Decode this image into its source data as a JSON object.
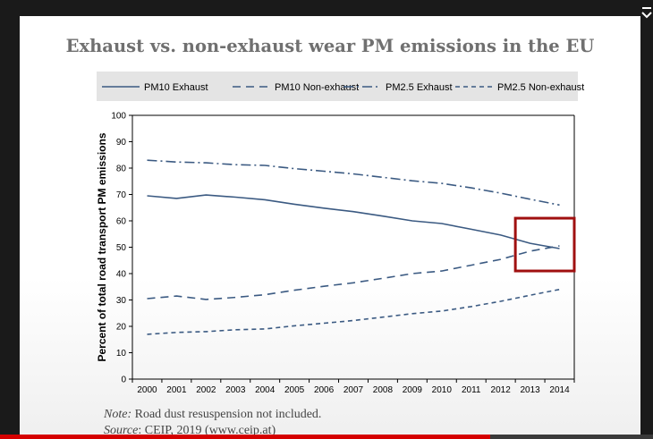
{
  "progress": {
    "fraction": 0.75,
    "color": "#d50000"
  },
  "note": {
    "note_label": "Note:",
    "note_text": " Road dust resuspension not included.",
    "source_label": "Source",
    "source_text": ": CEIP, 2019 (www.ceip.at)"
  },
  "chart_data": {
    "type": "line",
    "title": "Exhaust vs. non-exhaust wear PM emissions in the EU",
    "ylabel": "Percent of total road transport PM emissions",
    "xlabel": "",
    "ylim": [
      0,
      100
    ],
    "yticks": [
      0,
      10,
      20,
      30,
      40,
      50,
      60,
      70,
      80,
      90,
      100
    ],
    "x": [
      "2000",
      "2001",
      "2002",
      "2003",
      "2004",
      "2005",
      "2006",
      "2007",
      "2008",
      "2009",
      "2010",
      "2011",
      "2012",
      "2013",
      "2014"
    ],
    "legend_position": "top",
    "grid": false,
    "line_color": "#3b5a82",
    "highlight_box": {
      "x_from": "2013",
      "x_to": "2014",
      "y_from": 41,
      "y_to": 61,
      "color": "#a01010"
    },
    "series": [
      {
        "name": "PM10 Exhaust",
        "style": "solid",
        "values": [
          69.5,
          68.5,
          69.8,
          69.0,
          68.0,
          66.3,
          64.8,
          63.5,
          61.8,
          60.0,
          59.0,
          56.8,
          54.6,
          51.5,
          49.5
        ]
      },
      {
        "name": "PM10 Non-exhaust",
        "style": "dashed",
        "values": [
          30.5,
          31.5,
          30.2,
          31.0,
          32.0,
          33.7,
          35.2,
          36.5,
          38.2,
          40.0,
          41.0,
          43.2,
          45.4,
          48.5,
          50.5
        ]
      },
      {
        "name": "PM2.5 Exhaust",
        "style": "dashdot",
        "values": [
          83.0,
          82.3,
          82.0,
          81.3,
          81.0,
          79.8,
          78.8,
          77.8,
          76.5,
          75.2,
          74.2,
          72.5,
          70.5,
          68.2,
          66.0
        ]
      },
      {
        "name": "PM2.5 Non-exhaust",
        "style": "dashed-short",
        "values": [
          17.0,
          17.7,
          18.0,
          18.7,
          19.0,
          20.2,
          21.2,
          22.2,
          23.5,
          24.8,
          25.8,
          27.5,
          29.5,
          31.8,
          34.0
        ]
      }
    ]
  }
}
